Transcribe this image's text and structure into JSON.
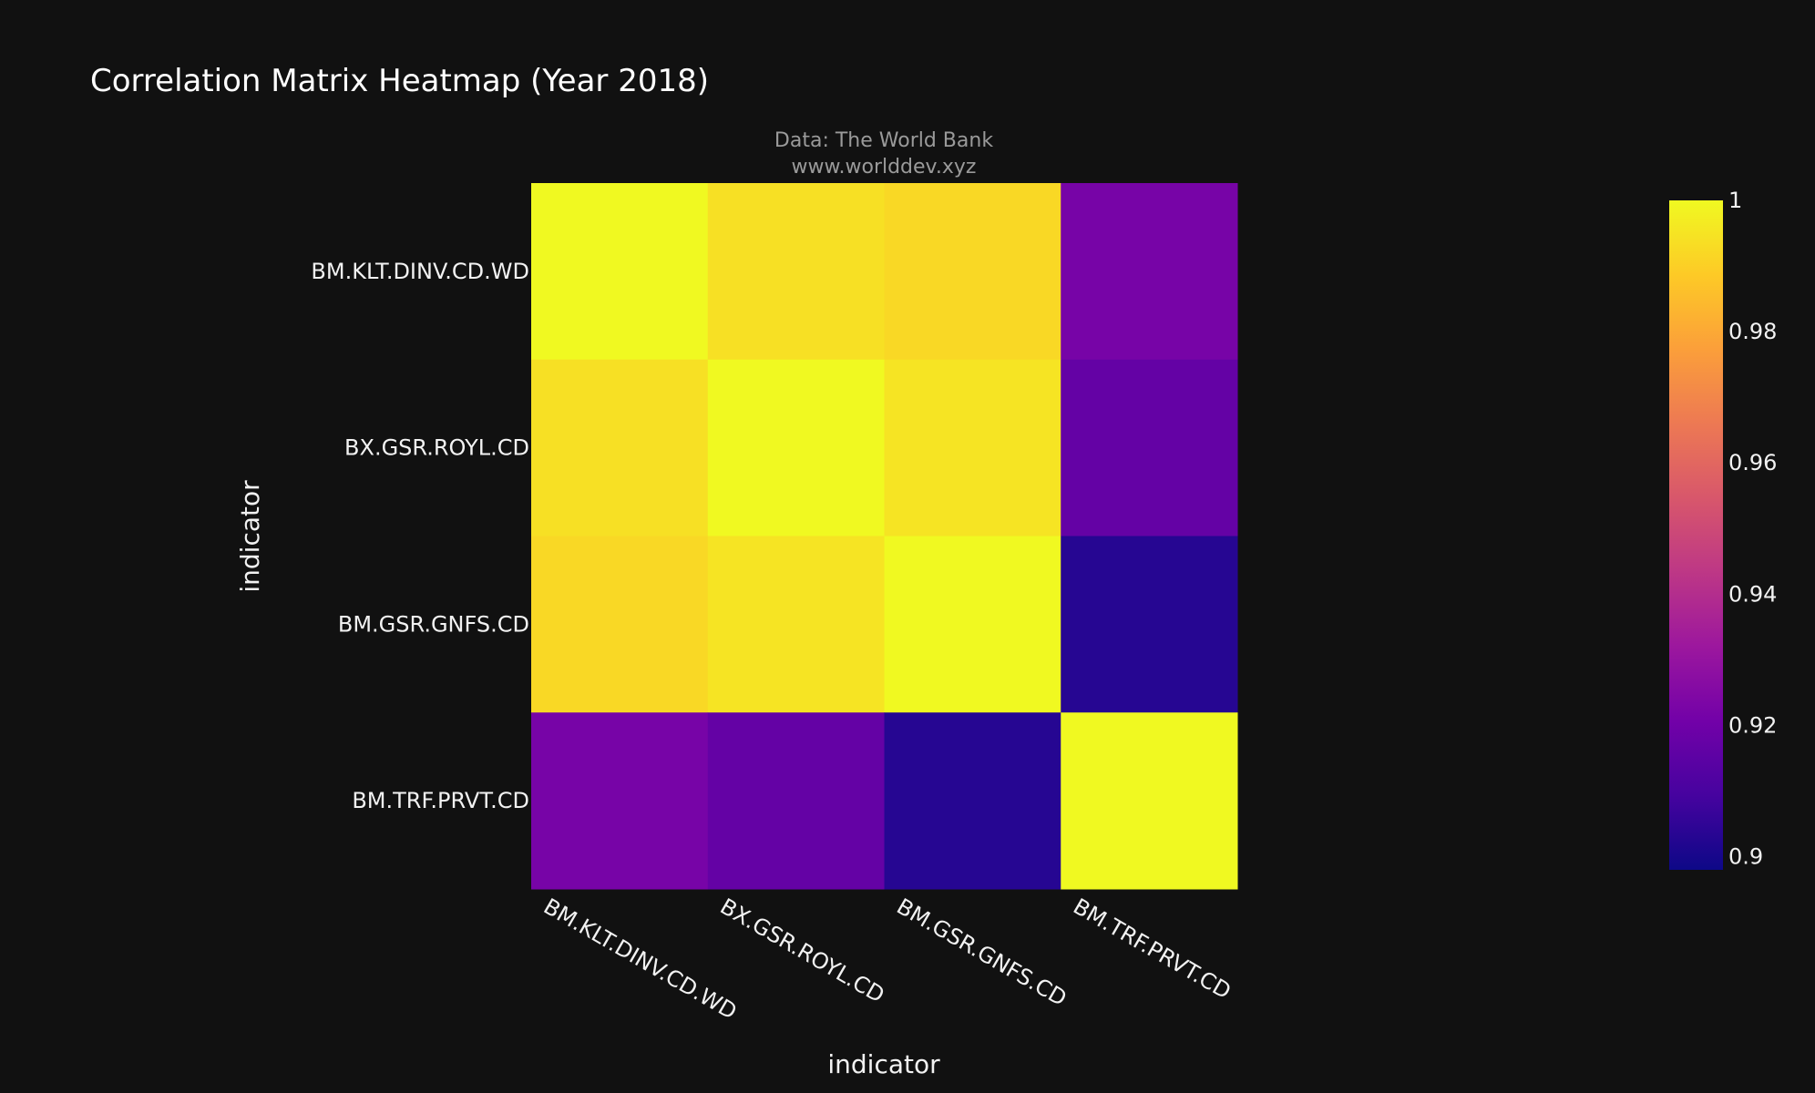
{
  "chart_data": {
    "type": "heatmap",
    "title": "Correlation Matrix Heatmap (Year 2018)",
    "annotation_lines": [
      "Data: The World Bank",
      "www.worlddev.xyz"
    ],
    "xlabel": "indicator",
    "ylabel": "indicator",
    "x": [
      "BM.KLT.DINV.CD.WD",
      "BX.GSR.ROYL.CD",
      "BM.GSR.GNFS.CD",
      "BM.TRF.PRVT.CD"
    ],
    "y": [
      "BM.KLT.DINV.CD.WD",
      "BX.GSR.ROYL.CD",
      "BM.GSR.GNFS.CD",
      "BM.TRF.PRVT.CD"
    ],
    "z": [
      [
        1.0,
        0.994,
        0.992,
        0.922
      ],
      [
        0.994,
        1.0,
        0.995,
        0.917
      ],
      [
        0.992,
        0.995,
        1.0,
        0.903
      ],
      [
        0.922,
        0.917,
        0.903,
        1.0
      ]
    ],
    "colorscale": "plasma",
    "zmin": 0.898,
    "zmax": 1.0,
    "colorbar_ticks": [
      0.9,
      0.92,
      0.94,
      0.96,
      0.98,
      1
    ],
    "colorbar_tick_labels": [
      "0.9",
      "0.92",
      "0.94",
      "0.96",
      "0.98",
      "1"
    ]
  }
}
